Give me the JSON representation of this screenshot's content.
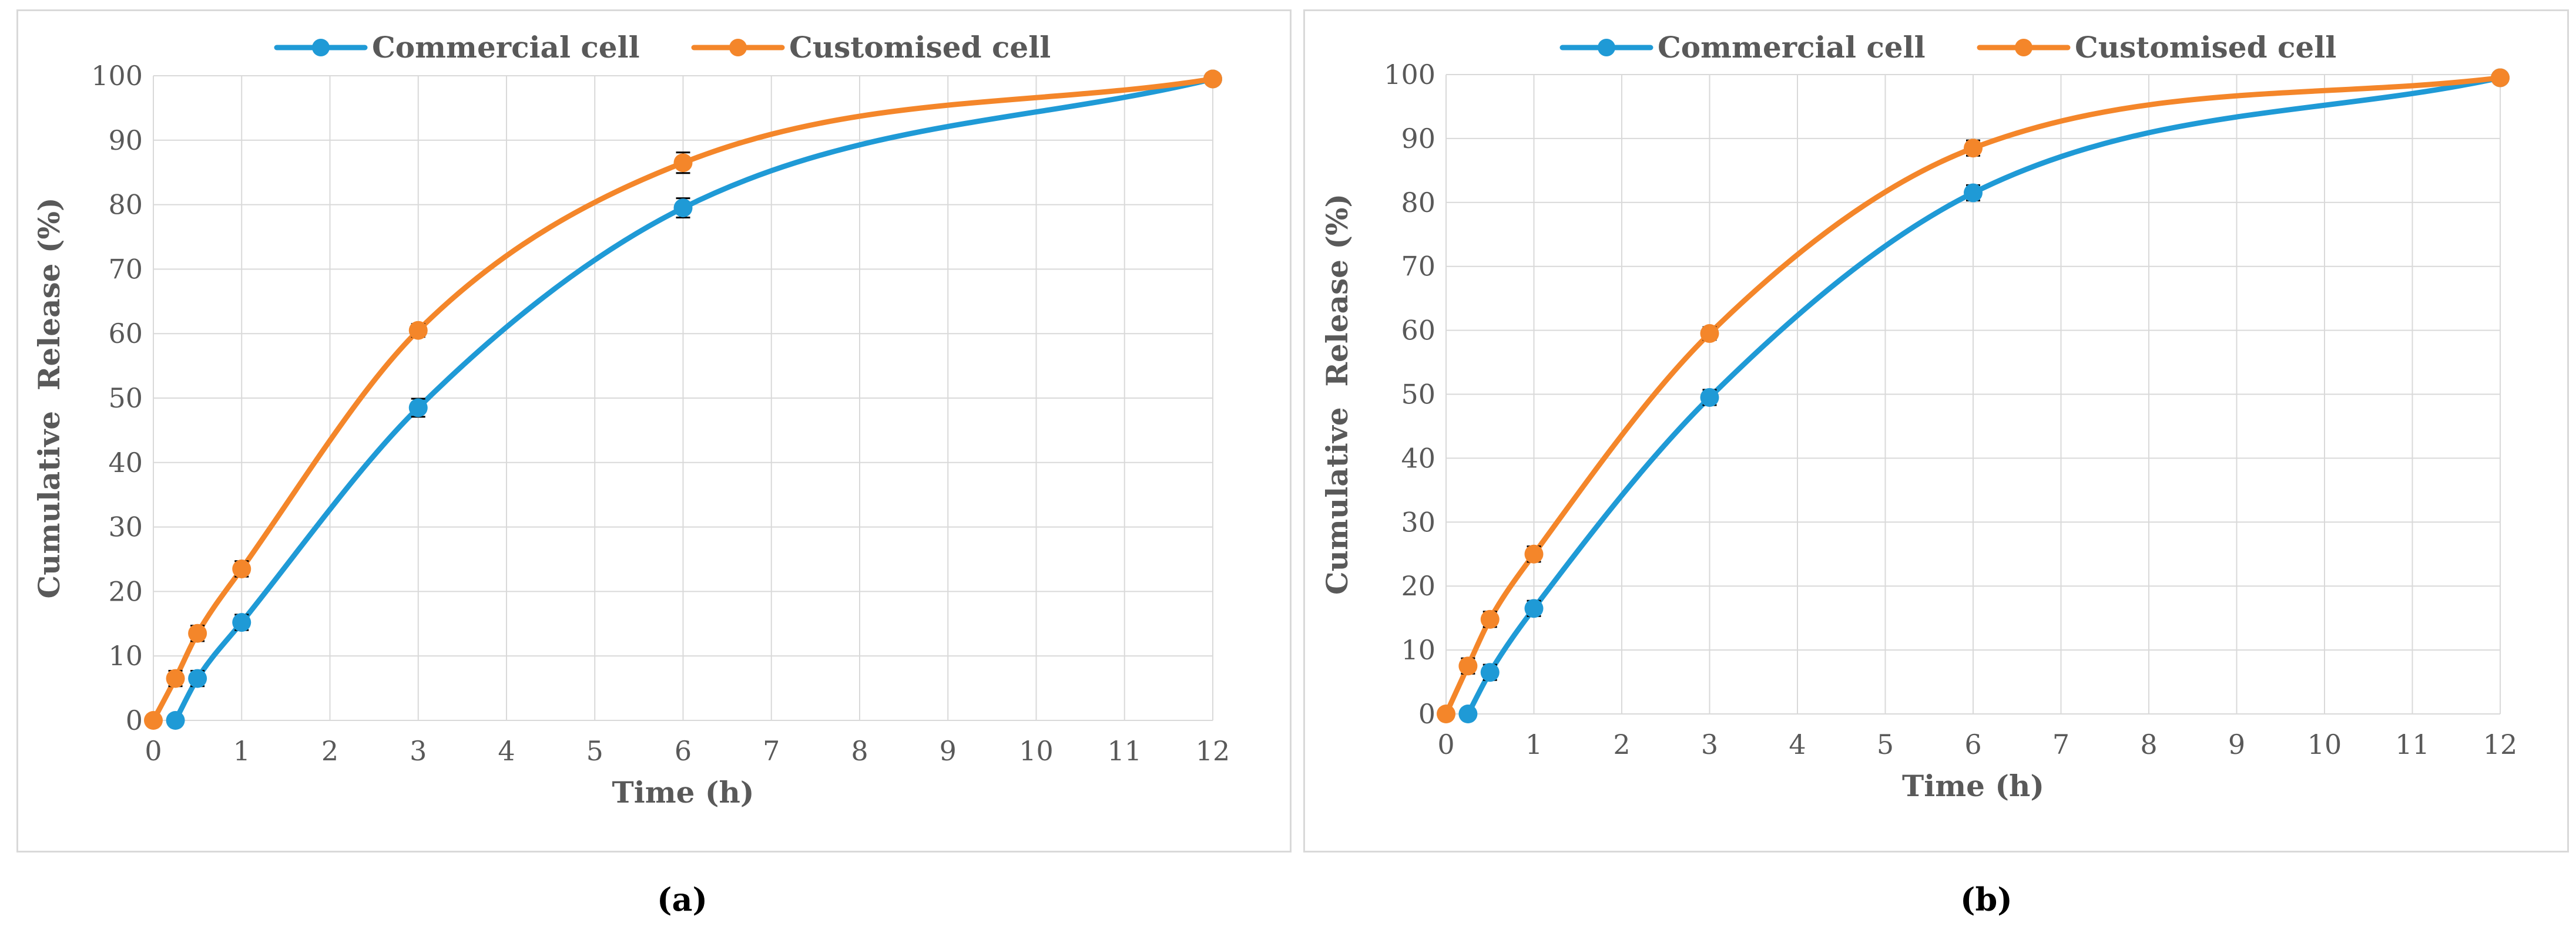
{
  "chart_data": [
    {
      "type": "line",
      "panel_label": "(a)",
      "xlabel": "Time (h)",
      "ylabel": "Cumulative  Release (%)",
      "xlim": [
        0,
        12
      ],
      "ylim": [
        0,
        100
      ],
      "xticks": [
        "0",
        "1",
        "2",
        "3",
        "4",
        "5",
        "6",
        "7",
        "8",
        "9",
        "10",
        "11",
        "12"
      ],
      "yticks": [
        "0",
        "10",
        "20",
        "30",
        "40",
        "50",
        "60",
        "70",
        "80",
        "90",
        "100"
      ],
      "grid": true,
      "legend_position": "top-center",
      "series": [
        {
          "name": "Commercial cell",
          "color": "#1f9ad6",
          "x": [
            0.25,
            0.5,
            1,
            3,
            6,
            12
          ],
          "y": [
            0,
            6.5,
            15.2,
            48.5,
            79.5,
            99.5
          ],
          "error": [
            0,
            1.2,
            1.2,
            1.4,
            1.5,
            0
          ]
        },
        {
          "name": "Customised cell",
          "color": "#f4862a",
          "x": [
            0,
            0.25,
            0.5,
            1,
            3,
            6,
            12
          ],
          "y": [
            0,
            6.5,
            13.5,
            23.5,
            60.5,
            86.5,
            99.5
          ],
          "error": [
            0,
            1.2,
            1.2,
            1.2,
            1.0,
            1.6,
            0
          ]
        }
      ]
    },
    {
      "type": "line",
      "panel_label": "(b)",
      "xlabel": "Time (h)",
      "ylabel": "Cumulative  Release (%)",
      "xlim": [
        0,
        12
      ],
      "ylim": [
        0,
        100
      ],
      "xticks": [
        "0",
        "1",
        "2",
        "3",
        "4",
        "5",
        "6",
        "7",
        "8",
        "9",
        "10",
        "11",
        "12"
      ],
      "yticks": [
        "0",
        "10",
        "20",
        "30",
        "40",
        "50",
        "60",
        "70",
        "80",
        "90",
        "100"
      ],
      "grid": true,
      "legend_position": "top-center",
      "series": [
        {
          "name": "Commercial cell",
          "color": "#1f9ad6",
          "x": [
            0.25,
            0.5,
            1,
            3,
            6,
            12
          ],
          "y": [
            0,
            6.5,
            16.5,
            49.5,
            81.5,
            99.5
          ],
          "error": [
            0,
            1.2,
            1.2,
            1.2,
            1.2,
            0
          ]
        },
        {
          "name": "Customised cell",
          "color": "#f4862a",
          "x": [
            0,
            0.25,
            0.5,
            1,
            3,
            6,
            12
          ],
          "y": [
            0,
            7.5,
            14.8,
            25,
            59.5,
            88.5,
            99.5
          ],
          "error": [
            0,
            1.2,
            1.2,
            1.2,
            1.0,
            1.2,
            0
          ]
        }
      ]
    }
  ]
}
